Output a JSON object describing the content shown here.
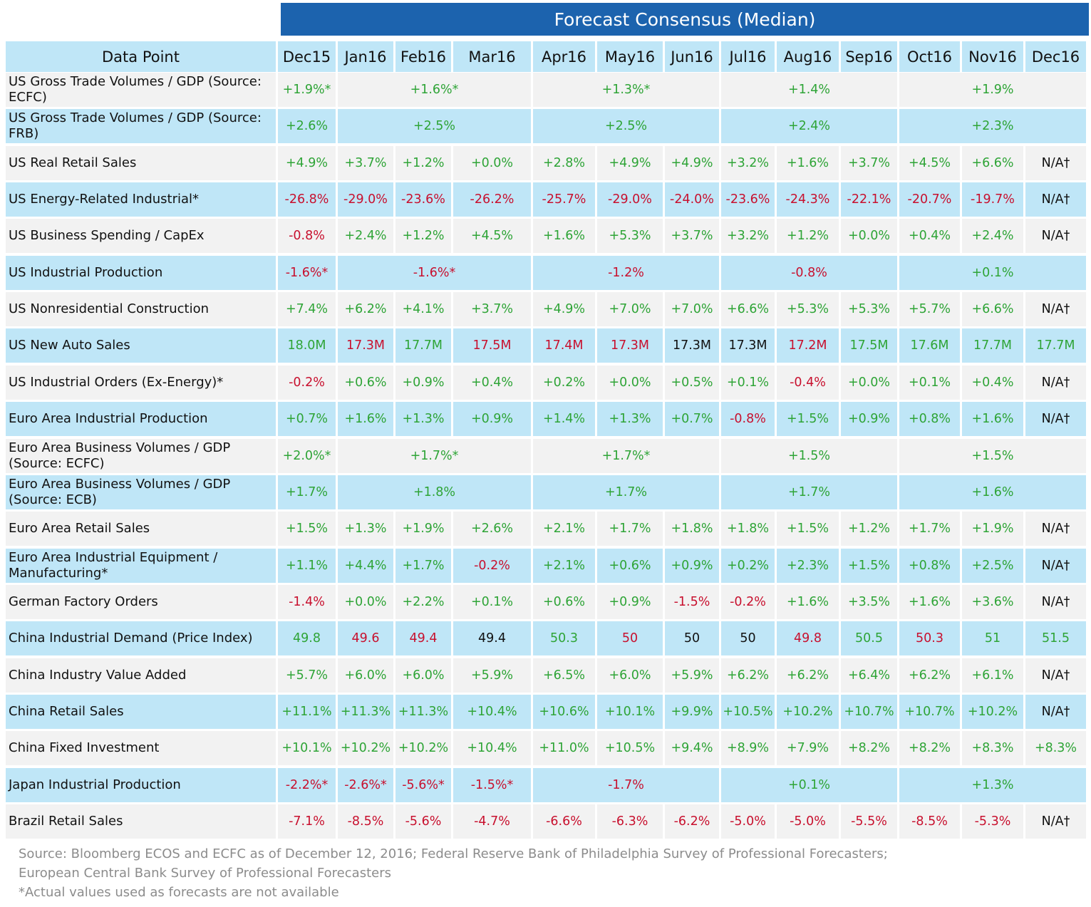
{
  "title": "Forecast Consensus (Median)",
  "header_label": "Data Point",
  "columns": [
    "Dec15",
    "Jan16",
    "Feb16",
    "Mar16",
    "Apr16",
    "May16",
    "Jun16",
    "Jul16",
    "Aug16",
    "Sep16",
    "Oct16",
    "Nov16",
    "Dec16"
  ],
  "colors": {
    "positive": "#2ea436",
    "negative": "#c8102e",
    "neutral": "#111111",
    "header_blue": "#1c63ae",
    "band_light_blue": "#bfe6f7",
    "band_gray": "#f2f2f2"
  },
  "rows": [
    {
      "label": "US Gross Trade Volumes / GDP (Source: ECFC)",
      "cells": [
        {
          "text": "+1.9%*",
          "tone": "pos",
          "span": 1
        },
        {
          "text": "+1.6%*",
          "tone": "pos",
          "span": 3
        },
        {
          "text": "+1.3%*",
          "tone": "pos",
          "span": 3
        },
        {
          "text": "+1.4%",
          "tone": "pos",
          "span": 3
        },
        {
          "text": "+1.9%",
          "tone": "pos",
          "span": 3
        }
      ]
    },
    {
      "label": "US Gross Trade Volumes / GDP (Source: FRB)",
      "cells": [
        {
          "text": "+2.6%",
          "tone": "pos",
          "span": 1
        },
        {
          "text": "+2.5%",
          "tone": "pos",
          "span": 3
        },
        {
          "text": "+2.5%",
          "tone": "pos",
          "span": 3
        },
        {
          "text": "+2.4%",
          "tone": "pos",
          "span": 3
        },
        {
          "text": "+2.3%",
          "tone": "pos",
          "span": 3
        }
      ]
    },
    {
      "label": "US Real Retail Sales",
      "cells": [
        {
          "text": "+4.9%",
          "tone": "pos"
        },
        {
          "text": "+3.7%",
          "tone": "pos"
        },
        {
          "text": "+1.2%",
          "tone": "pos"
        },
        {
          "text": "+0.0%",
          "tone": "pos"
        },
        {
          "text": "+2.8%",
          "tone": "pos"
        },
        {
          "text": "+4.9%",
          "tone": "pos"
        },
        {
          "text": "+4.9%",
          "tone": "pos"
        },
        {
          "text": "+3.2%",
          "tone": "pos"
        },
        {
          "text": "+1.6%",
          "tone": "pos"
        },
        {
          "text": "+3.7%",
          "tone": "pos"
        },
        {
          "text": "+4.5%",
          "tone": "pos"
        },
        {
          "text": "+6.6%",
          "tone": "pos"
        },
        {
          "text": "N/A†",
          "tone": "neu"
        }
      ]
    },
    {
      "label": "US Energy-Related Industrial*",
      "cells": [
        {
          "text": "-26.8%",
          "tone": "neg"
        },
        {
          "text": "-29.0%",
          "tone": "neg"
        },
        {
          "text": "-23.6%",
          "tone": "neg"
        },
        {
          "text": "-26.2%",
          "tone": "neg"
        },
        {
          "text": "-25.7%",
          "tone": "neg"
        },
        {
          "text": "-29.0%",
          "tone": "neg"
        },
        {
          "text": "-24.0%",
          "tone": "neg"
        },
        {
          "text": "-23.6%",
          "tone": "neg"
        },
        {
          "text": "-24.3%",
          "tone": "neg"
        },
        {
          "text": "-22.1%",
          "tone": "neg"
        },
        {
          "text": "-20.7%",
          "tone": "neg"
        },
        {
          "text": "-19.7%",
          "tone": "neg"
        },
        {
          "text": "N/A†",
          "tone": "neu"
        }
      ]
    },
    {
      "label": "US Business Spending / CapEx",
      "cells": [
        {
          "text": "-0.8%",
          "tone": "neg"
        },
        {
          "text": "+2.4%",
          "tone": "pos"
        },
        {
          "text": "+1.2%",
          "tone": "pos"
        },
        {
          "text": "+4.5%",
          "tone": "pos"
        },
        {
          "text": "+1.6%",
          "tone": "pos"
        },
        {
          "text": "+5.3%",
          "tone": "pos"
        },
        {
          "text": "+3.7%",
          "tone": "pos"
        },
        {
          "text": "+3.2%",
          "tone": "pos"
        },
        {
          "text": "+1.2%",
          "tone": "pos"
        },
        {
          "text": "+0.0%",
          "tone": "pos"
        },
        {
          "text": "+0.4%",
          "tone": "pos"
        },
        {
          "text": "+2.4%",
          "tone": "pos"
        },
        {
          "text": "N/A†",
          "tone": "neu"
        }
      ]
    },
    {
      "label": "US Industrial Production",
      "cells": [
        {
          "text": "-1.6%*",
          "tone": "neg",
          "span": 1
        },
        {
          "text": "-1.6%*",
          "tone": "neg",
          "span": 3
        },
        {
          "text": "-1.2%",
          "tone": "neg",
          "span": 3
        },
        {
          "text": "-0.8%",
          "tone": "neg",
          "span": 3
        },
        {
          "text": "+0.1%",
          "tone": "pos",
          "span": 3
        }
      ]
    },
    {
      "label": "US Nonresidential Construction",
      "cells": [
        {
          "text": "+7.4%",
          "tone": "pos"
        },
        {
          "text": "+6.2%",
          "tone": "pos"
        },
        {
          "text": "+4.1%",
          "tone": "pos"
        },
        {
          "text": "+3.7%",
          "tone": "pos"
        },
        {
          "text": "+4.9%",
          "tone": "pos"
        },
        {
          "text": "+7.0%",
          "tone": "pos"
        },
        {
          "text": "+7.0%",
          "tone": "pos"
        },
        {
          "text": "+6.6%",
          "tone": "pos"
        },
        {
          "text": "+5.3%",
          "tone": "pos"
        },
        {
          "text": "+5.3%",
          "tone": "pos"
        },
        {
          "text": "+5.7%",
          "tone": "pos"
        },
        {
          "text": "+6.6%",
          "tone": "pos"
        },
        {
          "text": "N/A†",
          "tone": "neu"
        }
      ]
    },
    {
      "label": "US New Auto Sales",
      "cells": [
        {
          "text": "18.0M",
          "tone": "pos"
        },
        {
          "text": "17.3M",
          "tone": "neg"
        },
        {
          "text": "17.7M",
          "tone": "pos"
        },
        {
          "text": "17.5M",
          "tone": "neg"
        },
        {
          "text": "17.4M",
          "tone": "neg"
        },
        {
          "text": "17.3M",
          "tone": "neg"
        },
        {
          "text": "17.3M",
          "tone": "neu"
        },
        {
          "text": "17.3M",
          "tone": "neu"
        },
        {
          "text": "17.2M",
          "tone": "neg"
        },
        {
          "text": "17.5M",
          "tone": "pos"
        },
        {
          "text": "17.6M",
          "tone": "pos"
        },
        {
          "text": "17.7M",
          "tone": "pos"
        },
        {
          "text": "17.7M",
          "tone": "pos"
        }
      ]
    },
    {
      "label": "US Industrial Orders (Ex-Energy)*",
      "cells": [
        {
          "text": "-0.2%",
          "tone": "neg"
        },
        {
          "text": "+0.6%",
          "tone": "pos"
        },
        {
          "text": "+0.9%",
          "tone": "pos"
        },
        {
          "text": "+0.4%",
          "tone": "pos"
        },
        {
          "text": "+0.2%",
          "tone": "pos"
        },
        {
          "text": "+0.0%",
          "tone": "pos"
        },
        {
          "text": "+0.5%",
          "tone": "pos"
        },
        {
          "text": "+0.1%",
          "tone": "pos"
        },
        {
          "text": "-0.4%",
          "tone": "neg"
        },
        {
          "text": "+0.0%",
          "tone": "pos"
        },
        {
          "text": "+0.1%",
          "tone": "pos"
        },
        {
          "text": "+0.4%",
          "tone": "pos"
        },
        {
          "text": "N/A†",
          "tone": "neu"
        }
      ]
    },
    {
      "label": "Euro Area Industrial Production",
      "cells": [
        {
          "text": "+0.7%",
          "tone": "pos"
        },
        {
          "text": "+1.6%",
          "tone": "pos"
        },
        {
          "text": "+1.3%",
          "tone": "pos"
        },
        {
          "text": "+0.9%",
          "tone": "pos"
        },
        {
          "text": "+1.4%",
          "tone": "pos"
        },
        {
          "text": "+1.3%",
          "tone": "pos"
        },
        {
          "text": "+0.7%",
          "tone": "pos"
        },
        {
          "text": "-0.8%",
          "tone": "neg"
        },
        {
          "text": "+1.5%",
          "tone": "pos"
        },
        {
          "text": "+0.9%",
          "tone": "pos"
        },
        {
          "text": "+0.8%",
          "tone": "pos"
        },
        {
          "text": "+1.6%",
          "tone": "pos"
        },
        {
          "text": "N/A†",
          "tone": "neu"
        }
      ]
    },
    {
      "label": "Euro Area Business Volumes / GDP (Source: ECFC)",
      "cells": [
        {
          "text": "+2.0%*",
          "tone": "pos",
          "span": 1
        },
        {
          "text": "+1.7%*",
          "tone": "pos",
          "span": 3
        },
        {
          "text": "+1.7%*",
          "tone": "pos",
          "span": 3
        },
        {
          "text": "+1.5%",
          "tone": "pos",
          "span": 3
        },
        {
          "text": "+1.5%",
          "tone": "pos",
          "span": 3
        }
      ]
    },
    {
      "label": "Euro Area Business Volumes / GDP (Source: ECB)",
      "cells": [
        {
          "text": "+1.7%",
          "tone": "pos",
          "span": 1
        },
        {
          "text": "+1.8%",
          "tone": "pos",
          "span": 3
        },
        {
          "text": "+1.7%",
          "tone": "pos",
          "span": 3
        },
        {
          "text": "+1.7%",
          "tone": "pos",
          "span": 3
        },
        {
          "text": "+1.6%",
          "tone": "pos",
          "span": 3
        }
      ]
    },
    {
      "label": "Euro Area Retail Sales",
      "cells": [
        {
          "text": "+1.5%",
          "tone": "pos"
        },
        {
          "text": "+1.3%",
          "tone": "pos"
        },
        {
          "text": "+1.9%",
          "tone": "pos"
        },
        {
          "text": "+2.6%",
          "tone": "pos"
        },
        {
          "text": "+2.1%",
          "tone": "pos"
        },
        {
          "text": "+1.7%",
          "tone": "pos"
        },
        {
          "text": "+1.8%",
          "tone": "pos"
        },
        {
          "text": "+1.8%",
          "tone": "pos"
        },
        {
          "text": "+1.5%",
          "tone": "pos"
        },
        {
          "text": "+1.2%",
          "tone": "pos"
        },
        {
          "text": "+1.7%",
          "tone": "pos"
        },
        {
          "text": "+1.9%",
          "tone": "pos"
        },
        {
          "text": "N/A†",
          "tone": "neu"
        }
      ]
    },
    {
      "label": "Euro Area Industrial Equipment / Manufacturing*",
      "cells": [
        {
          "text": "+1.1%",
          "tone": "pos"
        },
        {
          "text": "+4.4%",
          "tone": "pos"
        },
        {
          "text": "+1.7%",
          "tone": "pos"
        },
        {
          "text": "-0.2%",
          "tone": "neg"
        },
        {
          "text": "+2.1%",
          "tone": "pos"
        },
        {
          "text": "+0.6%",
          "tone": "pos"
        },
        {
          "text": "+0.9%",
          "tone": "pos"
        },
        {
          "text": "+0.2%",
          "tone": "pos"
        },
        {
          "text": "+2.3%",
          "tone": "pos"
        },
        {
          "text": "+1.5%",
          "tone": "pos"
        },
        {
          "text": "+0.8%",
          "tone": "pos"
        },
        {
          "text": "+2.5%",
          "tone": "pos"
        },
        {
          "text": "N/A†",
          "tone": "neu"
        }
      ]
    },
    {
      "label": "German Factory Orders",
      "cells": [
        {
          "text": "-1.4%",
          "tone": "neg"
        },
        {
          "text": "+0.0%",
          "tone": "pos"
        },
        {
          "text": "+2.2%",
          "tone": "pos"
        },
        {
          "text": "+0.1%",
          "tone": "pos"
        },
        {
          "text": "+0.6%",
          "tone": "pos"
        },
        {
          "text": "+0.9%",
          "tone": "pos"
        },
        {
          "text": "-1.5%",
          "tone": "neg"
        },
        {
          "text": "-0.2%",
          "tone": "neg"
        },
        {
          "text": "+1.6%",
          "tone": "pos"
        },
        {
          "text": "+3.5%",
          "tone": "pos"
        },
        {
          "text": "+1.6%",
          "tone": "pos"
        },
        {
          "text": "+3.6%",
          "tone": "pos"
        },
        {
          "text": "N/A†",
          "tone": "neu"
        }
      ]
    },
    {
      "label": "China Industrial Demand (Price Index)",
      "cells": [
        {
          "text": "49.8",
          "tone": "pos"
        },
        {
          "text": "49.6",
          "tone": "neg"
        },
        {
          "text": "49.4",
          "tone": "neg"
        },
        {
          "text": "49.4",
          "tone": "neu"
        },
        {
          "text": "50.3",
          "tone": "pos"
        },
        {
          "text": "50",
          "tone": "neg"
        },
        {
          "text": "50",
          "tone": "neu"
        },
        {
          "text": "50",
          "tone": "neu"
        },
        {
          "text": "49.8",
          "tone": "neg"
        },
        {
          "text": "50.5",
          "tone": "pos"
        },
        {
          "text": "50.3",
          "tone": "neg"
        },
        {
          "text": "51",
          "tone": "pos"
        },
        {
          "text": "51.5",
          "tone": "pos"
        }
      ]
    },
    {
      "label": "China Industry Value Added",
      "cells": [
        {
          "text": "+5.7%",
          "tone": "pos"
        },
        {
          "text": "+6.0%",
          "tone": "pos"
        },
        {
          "text": "+6.0%",
          "tone": "pos"
        },
        {
          "text": "+5.9%",
          "tone": "pos"
        },
        {
          "text": "+6.5%",
          "tone": "pos"
        },
        {
          "text": "+6.0%",
          "tone": "pos"
        },
        {
          "text": "+5.9%",
          "tone": "pos"
        },
        {
          "text": "+6.2%",
          "tone": "pos"
        },
        {
          "text": "+6.2%",
          "tone": "pos"
        },
        {
          "text": "+6.4%",
          "tone": "pos"
        },
        {
          "text": "+6.2%",
          "tone": "pos"
        },
        {
          "text": "+6.1%",
          "tone": "pos"
        },
        {
          "text": "N/A†",
          "tone": "neu"
        }
      ]
    },
    {
      "label": "China Retail Sales",
      "cells": [
        {
          "text": "+11.1%",
          "tone": "pos"
        },
        {
          "text": "+11.3%",
          "tone": "pos"
        },
        {
          "text": "+11.3%",
          "tone": "pos"
        },
        {
          "text": "+10.4%",
          "tone": "pos"
        },
        {
          "text": "+10.6%",
          "tone": "pos"
        },
        {
          "text": "+10.1%",
          "tone": "pos"
        },
        {
          "text": "+9.9%",
          "tone": "pos"
        },
        {
          "text": "+10.5%",
          "tone": "pos"
        },
        {
          "text": "+10.2%",
          "tone": "pos"
        },
        {
          "text": "+10.7%",
          "tone": "pos"
        },
        {
          "text": "+10.7%",
          "tone": "pos"
        },
        {
          "text": "+10.2%",
          "tone": "pos"
        },
        {
          "text": "N/A†",
          "tone": "neu"
        }
      ]
    },
    {
      "label": "China Fixed Investment",
      "cells": [
        {
          "text": "+10.1%",
          "tone": "pos"
        },
        {
          "text": "+10.2%",
          "tone": "pos"
        },
        {
          "text": "+10.2%",
          "tone": "pos"
        },
        {
          "text": "+10.4%",
          "tone": "pos"
        },
        {
          "text": "+11.0%",
          "tone": "pos"
        },
        {
          "text": "+10.5%",
          "tone": "pos"
        },
        {
          "text": "+9.4%",
          "tone": "pos"
        },
        {
          "text": "+8.9%",
          "tone": "pos"
        },
        {
          "text": "+7.9%",
          "tone": "pos"
        },
        {
          "text": "+8.2%",
          "tone": "pos"
        },
        {
          "text": "+8.2%",
          "tone": "pos"
        },
        {
          "text": "+8.3%",
          "tone": "pos"
        },
        {
          "text": "+8.3%",
          "tone": "pos"
        }
      ]
    },
    {
      "label": "Japan Industrial Production",
      "cells": [
        {
          "text": "-2.2%*",
          "tone": "neg",
          "span": 1
        },
        {
          "text": "-2.6%*",
          "tone": "neg",
          "span": 1
        },
        {
          "text": "-5.6%*",
          "tone": "neg",
          "span": 1
        },
        {
          "text": "-1.5%*",
          "tone": "neg",
          "span": 1
        },
        {
          "text": "-1.7%",
          "tone": "neg",
          "span": 3
        },
        {
          "text": "+0.1%",
          "tone": "pos",
          "span": 3
        },
        {
          "text": "+1.3%",
          "tone": "pos",
          "span": 3
        }
      ]
    },
    {
      "label": "Brazil Retail Sales",
      "cells": [
        {
          "text": "-7.1%",
          "tone": "neg"
        },
        {
          "text": "-8.5%",
          "tone": "neg"
        },
        {
          "text": "-5.6%",
          "tone": "neg"
        },
        {
          "text": "-4.7%",
          "tone": "neg"
        },
        {
          "text": "-6.6%",
          "tone": "neg"
        },
        {
          "text": "-6.3%",
          "tone": "neg"
        },
        {
          "text": "-6.2%",
          "tone": "neg"
        },
        {
          "text": "-5.0%",
          "tone": "neg"
        },
        {
          "text": "-5.0%",
          "tone": "neg"
        },
        {
          "text": "-5.5%",
          "tone": "neg"
        },
        {
          "text": "-8.5%",
          "tone": "neg"
        },
        {
          "text": "-5.3%",
          "tone": "neg"
        },
        {
          "text": "N/A†",
          "tone": "neu"
        }
      ]
    }
  ],
  "footnotes": [
    "Source: Bloomberg ECOS and ECFC as of December 12, 2016;  Federal Reserve Bank of Philadelphia Survey of Professional Forecasters;",
    "European Central Bank Survey  of Professional Forecasters",
    "*Actual values used as forecasts are not available"
  ]
}
